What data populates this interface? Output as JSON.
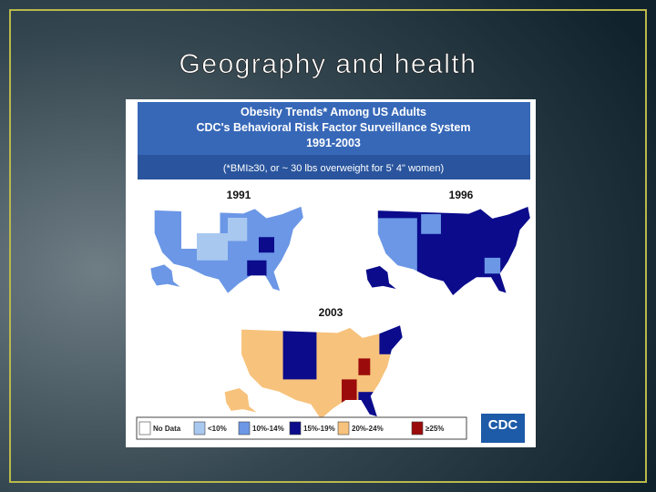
{
  "title": "Geography and health",
  "figure": {
    "header": {
      "lines": [
        "Obesity Trends* Among US Adults",
        "CDC's Behavioral Risk Factor Surveillance System",
        "1991-2003"
      ],
      "note": "(*BMI≥30, or ~ 30 lbs overweight for 5' 4\" women)"
    },
    "maps": [
      {
        "year": "1991"
      },
      {
        "year": "1996"
      },
      {
        "year": "2003"
      }
    ],
    "legend": [
      {
        "label": "No Data",
        "color": "#ffffff"
      },
      {
        "label": "<10%",
        "color": "#a8c8f0"
      },
      {
        "label": "10%-14%",
        "color": "#6b97e6"
      },
      {
        "label": "15%-19%",
        "color": "#0b0b8c"
      },
      {
        "label": "20%-24%",
        "color": "#f7c27c"
      },
      {
        "label": "≥25%",
        "color": "#9c0b0b"
      }
    ],
    "logo": "CDC"
  }
}
